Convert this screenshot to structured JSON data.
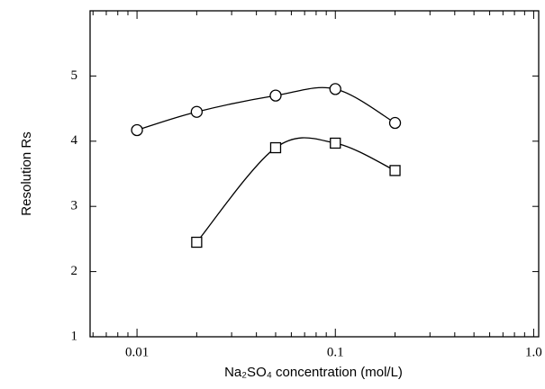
{
  "chart_data": {
    "type": "line",
    "x_label": "Na₂SO₄ concentration (mol/L)",
    "y_label": "Resolution Rs",
    "xscale": "log",
    "xlim": [
      0.0058,
      1.06
    ],
    "ylim": [
      1,
      6
    ],
    "xticks": [
      0.01,
      0.1,
      {
        "value": 1,
        "label": "1.0"
      }
    ],
    "yticks": [
      1,
      2,
      3,
      4,
      5
    ],
    "series": [
      {
        "marker": "circle",
        "color": "#000000",
        "x": [
          0.01,
          0.02,
          0.05,
          0.1,
          0.2
        ],
        "values": [
          4.17,
          4.45,
          4.7,
          4.8,
          4.28
        ]
      },
      {
        "marker": "square",
        "color": "#000000",
        "x": [
          0.02,
          0.05,
          0.1,
          0.2
        ],
        "values": [
          2.45,
          3.9,
          3.97,
          3.55
        ]
      }
    ]
  }
}
